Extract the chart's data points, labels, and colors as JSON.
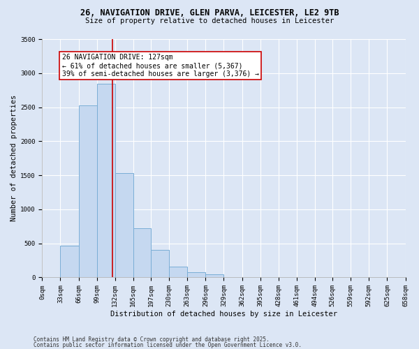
{
  "title_line1": "26, NAVIGATION DRIVE, GLEN PARVA, LEICESTER, LE2 9TB",
  "title_line2": "Size of property relative to detached houses in Leicester",
  "xlabel": "Distribution of detached houses by size in Leicester",
  "ylabel": "Number of detached properties",
  "bar_fill_color": "#c5d8f0",
  "bar_edge_color": "#7aaed6",
  "background_color": "#dce6f5",
  "grid_color": "#ffffff",
  "bin_labels": [
    "0sqm",
    "33sqm",
    "66sqm",
    "99sqm",
    "132sqm",
    "165sqm",
    "197sqm",
    "230sqm",
    "263sqm",
    "296sqm",
    "329sqm",
    "362sqm",
    "395sqm",
    "428sqm",
    "461sqm",
    "494sqm",
    "526sqm",
    "559sqm",
    "592sqm",
    "625sqm",
    "658sqm"
  ],
  "bar_values": [
    0,
    470,
    2530,
    2840,
    1530,
    720,
    400,
    155,
    80,
    45,
    0,
    0,
    0,
    0,
    0,
    0,
    0,
    0,
    0,
    0
  ],
  "bin_edges": [
    0,
    33,
    66,
    99,
    132,
    165,
    197,
    230,
    263,
    296,
    329,
    362,
    395,
    428,
    461,
    494,
    526,
    559,
    592,
    625,
    658
  ],
  "ylim": [
    0,
    3500
  ],
  "yticks": [
    0,
    500,
    1000,
    1500,
    2000,
    2500,
    3000,
    3500
  ],
  "property_size": 127,
  "property_line_color": "#cc0000",
  "annotation_text": "26 NAVIGATION DRIVE: 127sqm\n← 61% of detached houses are smaller (5,367)\n39% of semi-detached houses are larger (3,376) →",
  "annotation_box_facecolor": "#ffffff",
  "annotation_box_edgecolor": "#cc0000",
  "footer_line1": "Contains HM Land Registry data © Crown copyright and database right 2025.",
  "footer_line2": "Contains public sector information licensed under the Open Government Licence v3.0.",
  "title1_fontsize": 8.5,
  "title2_fontsize": 7.5,
  "tick_fontsize": 6.5,
  "ylabel_fontsize": 7.5,
  "xlabel_fontsize": 7.5,
  "footer_fontsize": 5.5,
  "annot_fontsize": 7.0
}
